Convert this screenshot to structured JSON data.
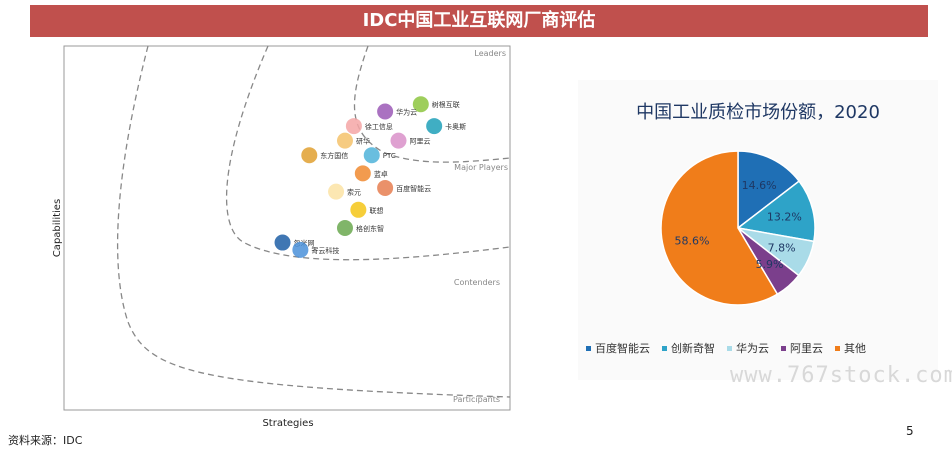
{
  "title": "IDC中国工业互联网厂商评估",
  "source": "资料来源：IDC",
  "page_number": "5",
  "watermark": "www.767stock.com",
  "chart_data": [
    {
      "type": "scatter",
      "xlabel": "Strategies",
      "ylabel": "Capabilities",
      "zones": [
        "Leaders",
        "Major Players",
        "Contenders",
        "Participants"
      ],
      "points": [
        {
          "label": "树根互联",
          "x": 0.8,
          "y": 0.84,
          "color": "#8dc63f"
        },
        {
          "label": "华为云",
          "x": 0.72,
          "y": 0.82,
          "color": "#9b59b6"
        },
        {
          "label": "徐工信息",
          "x": 0.65,
          "y": 0.78,
          "color": "#f4a6a6"
        },
        {
          "label": "卡奥斯",
          "x": 0.83,
          "y": 0.78,
          "color": "#1fa0b8"
        },
        {
          "label": "研华",
          "x": 0.63,
          "y": 0.74,
          "color": "#f5c26b"
        },
        {
          "label": "阿里云",
          "x": 0.75,
          "y": 0.74,
          "color": "#d990c9"
        },
        {
          "label": "PTC",
          "x": 0.69,
          "y": 0.7,
          "color": "#4fb3d9"
        },
        {
          "label": "东方国信",
          "x": 0.55,
          "y": 0.7,
          "color": "#e0a030"
        },
        {
          "label": "蓝卓",
          "x": 0.67,
          "y": 0.65,
          "color": "#f08a30"
        },
        {
          "label": "百度智能云",
          "x": 0.72,
          "y": 0.61,
          "color": "#e67e50"
        },
        {
          "label": "索元",
          "x": 0.61,
          "y": 0.6,
          "color": "#fbe3a5"
        },
        {
          "label": "联想",
          "x": 0.66,
          "y": 0.55,
          "color": "#f5c518"
        },
        {
          "label": "格创东智",
          "x": 0.63,
          "y": 0.5,
          "color": "#6aa84f"
        },
        {
          "label": "忽米网",
          "x": 0.49,
          "y": 0.46,
          "color": "#1f5fa6"
        },
        {
          "label": "寄云科技",
          "x": 0.53,
          "y": 0.44,
          "color": "#4a90d9"
        }
      ]
    },
    {
      "type": "pie",
      "title": "中国工业质检市场份额，2020",
      "slices": [
        {
          "label": "百度智能云",
          "value": 14.6,
          "value_label": "14.6%",
          "color": "#1f6fb5"
        },
        {
          "label": "创新奇智",
          "value": 13.2,
          "value_label": "13.2%",
          "color": "#2ea3c8"
        },
        {
          "label": "华为云",
          "value": 7.8,
          "value_label": "7.8%",
          "color": "#a9dbe8"
        },
        {
          "label": "阿里云",
          "value": 5.9,
          "value_label": "5.9%",
          "color": "#7b3f8c"
        },
        {
          "label": "其他",
          "value": 58.6,
          "value_label": "58.6%",
          "color": "#f07d1a"
        }
      ]
    }
  ]
}
